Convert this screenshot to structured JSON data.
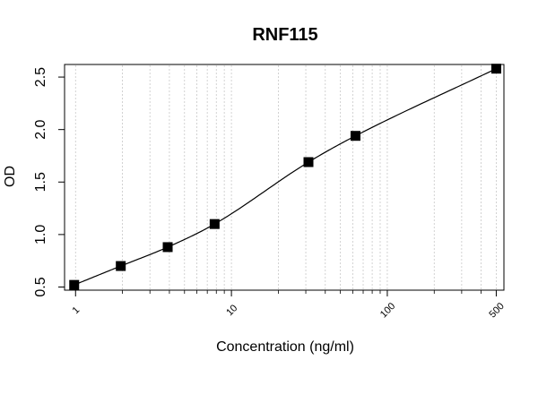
{
  "chart_data": {
    "type": "scatter",
    "title": "RNF115",
    "xlabel": "Concentration (ng/ml)",
    "ylabel": "OD",
    "xscale": "log",
    "xlim": [
      0.85,
      560
    ],
    "ylim": [
      0.47,
      2.62
    ],
    "x_ticks": [
      {
        "value": 1,
        "label": "1"
      },
      {
        "value": 10,
        "label": "10"
      },
      {
        "value": 100,
        "label": "100"
      },
      {
        "value": 500,
        "label": "500"
      }
    ],
    "y_ticks": [
      {
        "value": 0.5,
        "label": "0.5"
      },
      {
        "value": 1.0,
        "label": "1.0"
      },
      {
        "value": 1.5,
        "label": "1.5"
      },
      {
        "value": 2.0,
        "label": "2.0"
      },
      {
        "value": 2.5,
        "label": "2.5"
      }
    ],
    "grid": "vertical dotted at log minor positions",
    "series": [
      {
        "points": [
          {
            "x": 0.98,
            "y": 0.52
          },
          {
            "x": 1.95,
            "y": 0.7
          },
          {
            "x": 3.9,
            "y": 0.88
          },
          {
            "x": 7.8,
            "y": 1.1
          },
          {
            "x": 31.2,
            "y": 1.69
          },
          {
            "x": 62.5,
            "y": 1.94
          },
          {
            "x": 500,
            "y": 2.58
          }
        ],
        "marker": "filled-square",
        "color": "#000000",
        "fit": "smooth-curve"
      }
    ]
  }
}
